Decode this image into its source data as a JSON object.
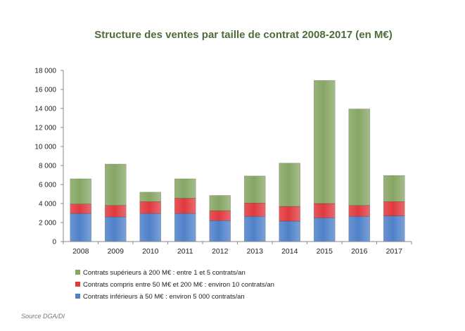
{
  "chart_data": {
    "type": "bar",
    "stacked": true,
    "title": "Structure des ventes par taille de contrat 2008-2017 (en M€)",
    "categories": [
      "2008",
      "2009",
      "2010",
      "2011",
      "2012",
      "2013",
      "2014",
      "2015",
      "2016",
      "2017"
    ],
    "series": [
      {
        "name": "Contrats inférieurs à 50 M€ : environ 5 000 contrats/an",
        "color": "#4f81c9",
        "values": [
          2950,
          2600,
          2950,
          2950,
          2200,
          2650,
          2150,
          2500,
          2650,
          2700
        ]
      },
      {
        "name": "Contrats compris entre 50 M€ et 200 M€ : environ 10 contrats/an",
        "color": "#e0393e",
        "values": [
          1000,
          1200,
          1250,
          1600,
          1050,
          1400,
          1550,
          1500,
          1150,
          1500
        ]
      },
      {
        "name": "Contrats supérieurs à 200 M€ : entre 1 et 5 contrats/an",
        "color": "#87a665",
        "values": [
          2650,
          4350,
          1000,
          2050,
          1600,
          2850,
          4550,
          12950,
          10150,
          2750
        ]
      }
    ],
    "ylim": [
      0,
      18000
    ],
    "yticks": [
      "0",
      "2 000",
      "4 000",
      "6 000",
      "8 000",
      "10 000",
      "12 000",
      "14 000",
      "16 000",
      "18 000"
    ],
    "ytick_values": [
      0,
      2000,
      4000,
      6000,
      8000,
      10000,
      12000,
      14000,
      16000,
      18000
    ],
    "legend_position": "bottom-left",
    "legend_order": [
      2,
      1,
      0
    ],
    "grid": false
  },
  "source": "Source DGA/DI"
}
